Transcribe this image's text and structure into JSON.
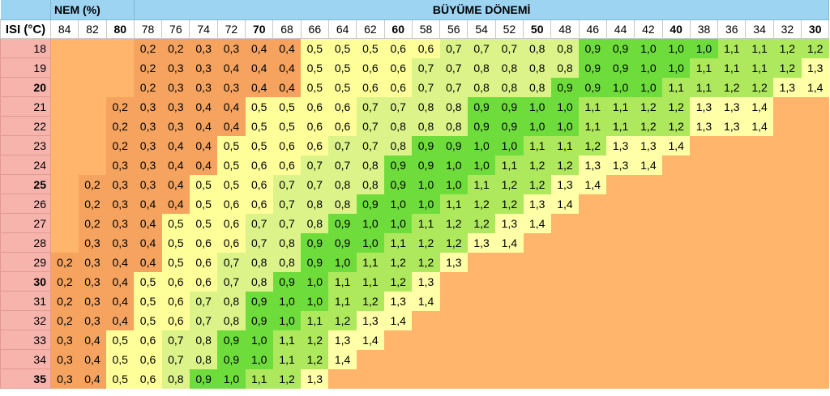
{
  "header": {
    "nem_label": "NEM (%)",
    "period_label": "BÜYÜME DÖNEMİ",
    "temp_label": "ISI (°C)"
  },
  "columns": [
    84,
    82,
    80,
    78,
    76,
    74,
    72,
    70,
    68,
    66,
    64,
    62,
    60,
    58,
    56,
    54,
    52,
    50,
    48,
    46,
    44,
    42,
    40,
    38,
    36,
    34,
    32,
    30
  ],
  "bold_columns": [
    80,
    70,
    60,
    50,
    40,
    30
  ],
  "bold_rows": [
    20,
    25,
    30,
    35
  ],
  "rows": [
    {
      "temp": 18,
      "values": [
        "",
        "",
        "",
        "0,2",
        "0,2",
        "0,3",
        "0,3",
        "0,4",
        "0,4",
        "0,5",
        "0,5",
        "0,5",
        "0,6",
        "0,6",
        "0,7",
        "0,7",
        "0,7",
        "0,8",
        "0,8",
        "0,9",
        "0,9",
        "1,0",
        "1,0",
        "1,0",
        "1,1",
        "1,1",
        "1,2",
        "1,2"
      ]
    },
    {
      "temp": 19,
      "values": [
        "",
        "",
        "",
        "0,2",
        "0,3",
        "0,3",
        "0,4",
        "0,4",
        "0,4",
        "0,5",
        "0,5",
        "0,6",
        "0,6",
        "0,7",
        "0,7",
        "0,8",
        "0,8",
        "0,8",
        "0,8",
        "0,9",
        "0,9",
        "1,0",
        "1,0",
        "1,1",
        "1,1",
        "1,1",
        "1,2",
        "1,3"
      ]
    },
    {
      "temp": 20,
      "values": [
        "",
        "",
        "",
        "0,2",
        "0,3",
        "0,3",
        "0,3",
        "0,4",
        "0,4",
        "0,5",
        "0,5",
        "0,6",
        "0,6",
        "0,7",
        "0,7",
        "0,8",
        "0,8",
        "0,8",
        "0,9",
        "0,9",
        "1,0",
        "1,0",
        "1,1",
        "1,1",
        "1,2",
        "1,2",
        "1,3",
        "1,4"
      ]
    },
    {
      "temp": 21,
      "values": [
        "",
        "",
        "0,2",
        "0,3",
        "0,3",
        "0,4",
        "0,4",
        "0,5",
        "0,5",
        "0,6",
        "0,6",
        "0,7",
        "0,7",
        "0,8",
        "0,8",
        "0,9",
        "0,9",
        "1,0",
        "1,0",
        "1,1",
        "1,1",
        "1,2",
        "1,2",
        "1,3",
        "1,3",
        "1,4",
        "",
        ""
      ]
    },
    {
      "temp": 22,
      "values": [
        "",
        "",
        "0,2",
        "0,3",
        "0,3",
        "0,4",
        "0,4",
        "0,5",
        "0,5",
        "0,6",
        "0,6",
        "0,7",
        "0,8",
        "0,8",
        "0,8",
        "0,9",
        "0,9",
        "1,0",
        "1,0",
        "1,1",
        "1,1",
        "1,2",
        "1,2",
        "1,3",
        "1,3",
        "1,4",
        "",
        ""
      ]
    },
    {
      "temp": 23,
      "values": [
        "",
        "",
        "0,2",
        "0,3",
        "0,4",
        "0,4",
        "0,5",
        "0,5",
        "0,6",
        "0,6",
        "0,7",
        "0,7",
        "0,8",
        "0,9",
        "0,9",
        "1,0",
        "1,0",
        "1,1",
        "1,1",
        "1,2",
        "1,3",
        "1,3",
        "1,4",
        "",
        "",
        "",
        "",
        ""
      ]
    },
    {
      "temp": 24,
      "values": [
        "",
        "",
        "0,3",
        "0,3",
        "0,4",
        "0,4",
        "0,5",
        "0,6",
        "0,6",
        "0,7",
        "0,7",
        "0,8",
        "0,9",
        "0,9",
        "1,0",
        "1,0",
        "1,1",
        "1,2",
        "1,2",
        "1,3",
        "1,3",
        "1,4",
        "",
        "",
        "",
        "",
        "",
        ""
      ]
    },
    {
      "temp": 25,
      "values": [
        "",
        "0,2",
        "0,3",
        "0,3",
        "0,4",
        "0,5",
        "0,5",
        "0,6",
        "0,7",
        "0,7",
        "0,8",
        "0,8",
        "0,9",
        "1,0",
        "1,0",
        "1,1",
        "1,2",
        "1,2",
        "1,3",
        "1,4",
        "",
        "",
        "",
        "",
        "",
        "",
        "",
        ""
      ]
    },
    {
      "temp": 26,
      "values": [
        "",
        "0,2",
        "0,3",
        "0,4",
        "0,4",
        "0,5",
        "0,6",
        "0,6",
        "0,7",
        "0,8",
        "0,8",
        "0,9",
        "1,0",
        "1,0",
        "1,1",
        "1,2",
        "1,2",
        "1,3",
        "1,4",
        "",
        "",
        "",
        "",
        "",
        "",
        "",
        "",
        ""
      ]
    },
    {
      "temp": 27,
      "values": [
        "",
        "0,2",
        "0,3",
        "0,4",
        "0,5",
        "0,5",
        "0,6",
        "0,7",
        "0,7",
        "0,8",
        "0,9",
        "1,0",
        "1,0",
        "1,1",
        "1,2",
        "1,2",
        "1,3",
        "1,4",
        "",
        "",
        "",
        "",
        "",
        "",
        "",
        "",
        "",
        ""
      ]
    },
    {
      "temp": 28,
      "values": [
        "",
        "0,3",
        "0,3",
        "0,4",
        "0,5",
        "0,6",
        "0,6",
        "0,7",
        "0,8",
        "0,9",
        "0,9",
        "1,0",
        "1,1",
        "1,2",
        "1,2",
        "1,3",
        "1,4",
        "",
        "",
        "",
        "",
        "",
        "",
        "",
        "",
        "",
        "",
        ""
      ]
    },
    {
      "temp": 29,
      "values": [
        "0,2",
        "0,3",
        "0,4",
        "0,4",
        "0,5",
        "0,6",
        "0,7",
        "0,8",
        "0,8",
        "0,9",
        "1,0",
        "1,1",
        "1,2",
        "1,2",
        "1,3",
        "",
        "",
        "",
        "",
        "",
        "",
        "",
        "",
        "",
        "",
        "",
        "",
        ""
      ]
    },
    {
      "temp": 30,
      "values": [
        "0,2",
        "0,3",
        "0,4",
        "0,5",
        "0,6",
        "0,6",
        "0,7",
        "0,8",
        "0,9",
        "1,0",
        "1,1",
        "1,1",
        "1,2",
        "1,3",
        "",
        "",
        "",
        "",
        "",
        "",
        "",
        "",
        "",
        "",
        "",
        "",
        "",
        ""
      ]
    },
    {
      "temp": 31,
      "values": [
        "0,2",
        "0,3",
        "0,4",
        "0,5",
        "0,6",
        "0,7",
        "0,8",
        "0,9",
        "1,0",
        "1,0",
        "1,1",
        "1,2",
        "1,3",
        "1,4",
        "",
        "",
        "",
        "",
        "",
        "",
        "",
        "",
        "",
        "",
        "",
        "",
        "",
        ""
      ]
    },
    {
      "temp": 32,
      "values": [
        "0,2",
        "0,3",
        "0,4",
        "0,5",
        "0,6",
        "0,7",
        "0,8",
        "0,9",
        "1,0",
        "1,1",
        "1,2",
        "1,3",
        "1,4",
        "",
        "",
        "",
        "",
        "",
        "",
        "",
        "",
        "",
        "",
        "",
        "",
        "",
        "",
        ""
      ]
    },
    {
      "temp": 33,
      "values": [
        "0,3",
        "0,4",
        "0,5",
        "0,6",
        "0,7",
        "0,8",
        "0,9",
        "1,0",
        "1,1",
        "1,2",
        "1,3",
        "1,4",
        "",
        "",
        "",
        "",
        "",
        "",
        "",
        "",
        "",
        "",
        "",
        "",
        "",
        "",
        "",
        ""
      ]
    },
    {
      "temp": 34,
      "values": [
        "0,3",
        "0,4",
        "0,5",
        "0,6",
        "0,7",
        "0,8",
        "0,9",
        "1,0",
        "1,1",
        "1,2",
        "1,4",
        "",
        "",
        "",
        "",
        "",
        "",
        "",
        "",
        "",
        "",
        "",
        "",
        "",
        "",
        "",
        "",
        ""
      ]
    },
    {
      "temp": 35,
      "values": [
        "0,3",
        "0,4",
        "0,5",
        "0,6",
        "0,8",
        "0,9",
        "1,0",
        "1,1",
        "1,2",
        "1,3",
        "",
        "",
        "",
        "",
        "",
        "",
        "",
        "",
        "",
        "",
        "",
        "",
        "",
        "",
        "",
        "",
        "",
        ""
      ]
    }
  ],
  "colors": {
    "header_bg": "#9DD4F2",
    "row_header_bg": "#F6B4AC",
    "empty": "#FFB56B",
    "low_orange": "#F5A35E",
    "lt_0_8_yellow": "#FFFF9A",
    "lt_0_9_lime": "#DCF38A",
    "lt_1_0_green": "#6EDD3C",
    "mid_green": "#AEE85C",
    "high_yellow": "#FFFFA8"
  }
}
